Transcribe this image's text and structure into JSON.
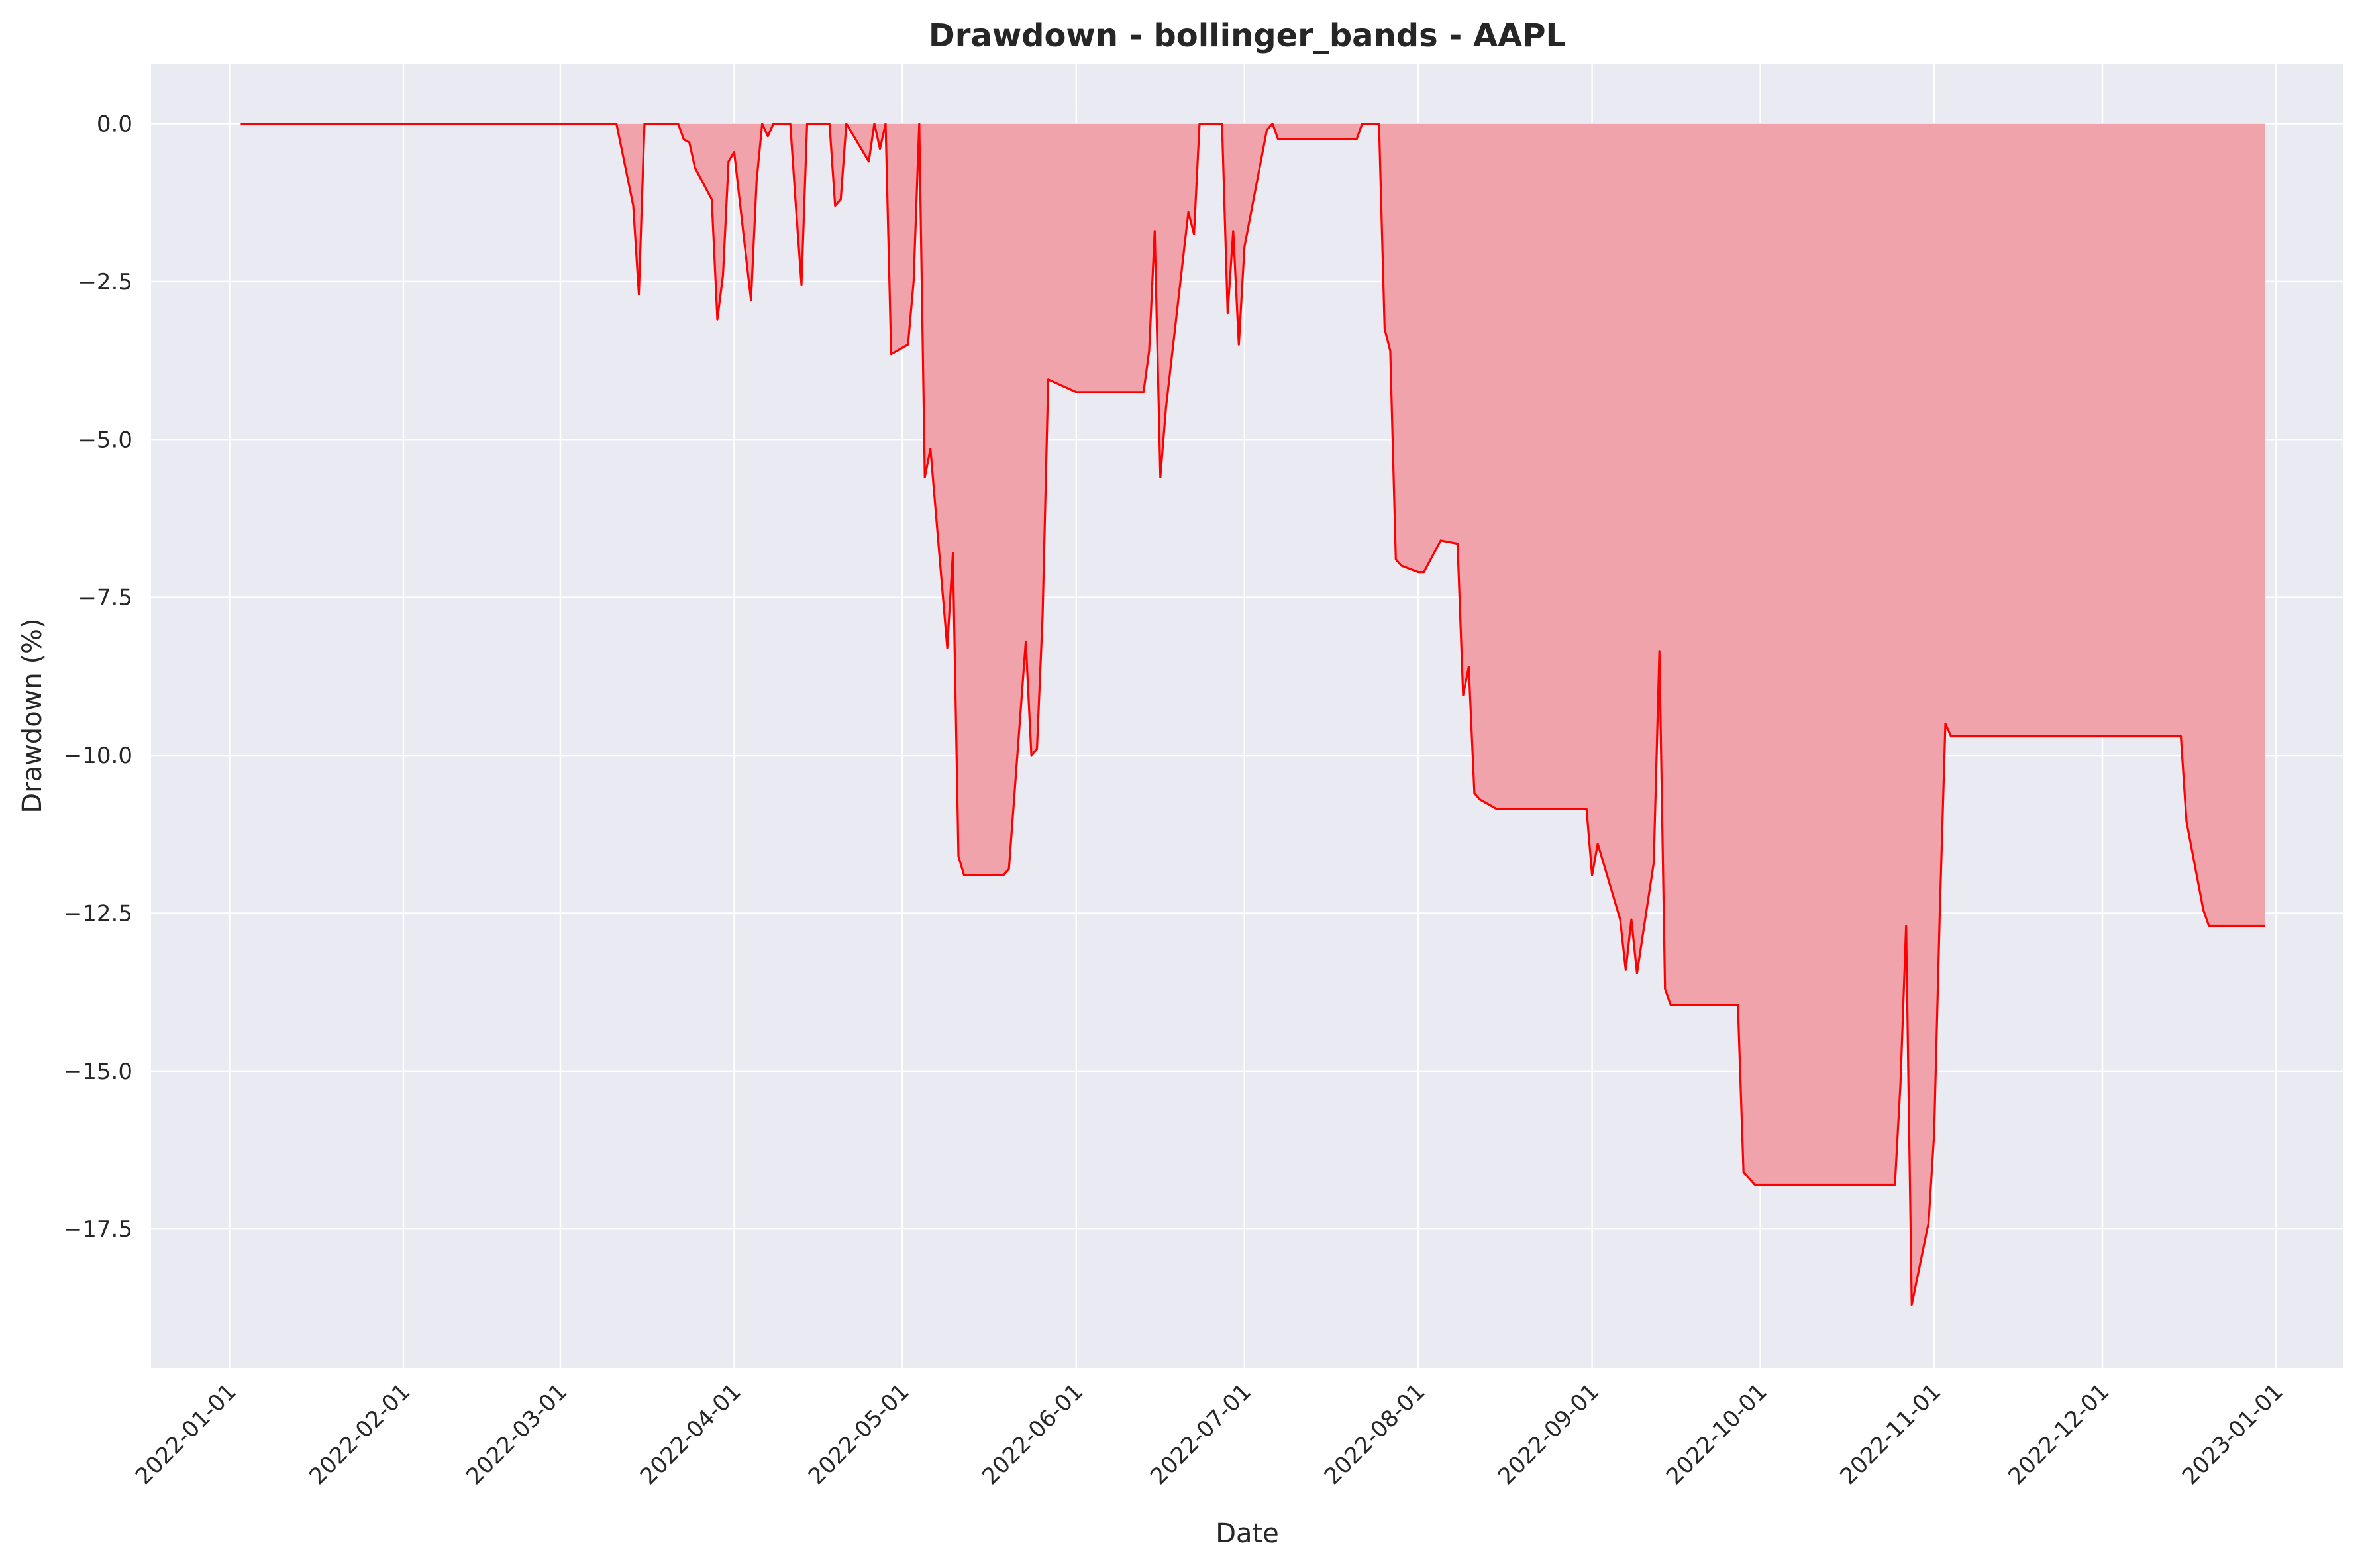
{
  "chart_data": {
    "type": "area",
    "title": "Drawdown - bollinger_bands - AAPL",
    "xlabel": "Date",
    "ylabel": "Drawdown (%)",
    "xlim": [
      "2021-12-18",
      "2023-01-13"
    ],
    "ylim": [
      -19.7,
      0.95
    ],
    "grid": true,
    "legend": "none",
    "colors": {
      "line": "#ff0000",
      "fill": "#f0a3aa",
      "plot_background": "#eaeaf2",
      "grid": "#ffffff"
    },
    "x_tick_labels": [
      "2022-01-01",
      "2022-02-01",
      "2022-03-01",
      "2022-04-01",
      "2022-05-01",
      "2022-06-01",
      "2022-07-01",
      "2022-08-01",
      "2022-09-01",
      "2022-10-01",
      "2022-11-01",
      "2022-12-01",
      "2023-01-01"
    ],
    "y_ticks": [
      0.0,
      -2.5,
      -5.0,
      -7.5,
      -10.0,
      -12.5,
      -15.0,
      -17.5
    ],
    "y_tick_labels": [
      "0.0",
      "−2.5",
      "−5.0",
      "−7.5",
      "−10.0",
      "−12.5",
      "−15.0",
      "−17.5"
    ],
    "series": [
      {
        "x": [
          "2022-01-03",
          "2022-03-11",
          "2022-03-14",
          "2022-03-15",
          "2022-03-16",
          "2022-03-22",
          "2022-03-23",
          "2022-03-24",
          "2022-03-25",
          "2022-03-28",
          "2022-03-29",
          "2022-03-30",
          "2022-03-31",
          "2022-04-01",
          "2022-04-04",
          "2022-04-05",
          "2022-04-06",
          "2022-04-07",
          "2022-04-08",
          "2022-04-11",
          "2022-04-12",
          "2022-04-13",
          "2022-04-14",
          "2022-04-15",
          "2022-04-18",
          "2022-04-19",
          "2022-04-20",
          "2022-04-21",
          "2022-04-25",
          "2022-04-26",
          "2022-04-27",
          "2022-04-28",
          "2022-04-29",
          "2022-05-02",
          "2022-05-03",
          "2022-05-04",
          "2022-05-05",
          "2022-05-06",
          "2022-05-09",
          "2022-05-10",
          "2022-05-11",
          "2022-05-12",
          "2022-05-19",
          "2022-05-20",
          "2022-05-23",
          "2022-05-24",
          "2022-05-25",
          "2022-05-26",
          "2022-05-27",
          "2022-06-01",
          "2022-06-13",
          "2022-06-14",
          "2022-06-15",
          "2022-06-16",
          "2022-06-17",
          "2022-06-21",
          "2022-06-22",
          "2022-06-23",
          "2022-06-24",
          "2022-06-27",
          "2022-06-28",
          "2022-06-29",
          "2022-06-30",
          "2022-07-01",
          "2022-07-05",
          "2022-07-06",
          "2022-07-07",
          "2022-07-21",
          "2022-07-22",
          "2022-07-25",
          "2022-07-26",
          "2022-07-27",
          "2022-07-28",
          "2022-07-29",
          "2022-08-01",
          "2022-08-02",
          "2022-08-05",
          "2022-08-08",
          "2022-08-09",
          "2022-08-10",
          "2022-08-11",
          "2022-08-12",
          "2022-08-15",
          "2022-08-31",
          "2022-09-01",
          "2022-09-02",
          "2022-09-06",
          "2022-09-07",
          "2022-09-08",
          "2022-09-09",
          "2022-09-12",
          "2022-09-13",
          "2022-09-14",
          "2022-09-15",
          "2022-09-16",
          "2022-09-27",
          "2022-09-28",
          "2022-09-29",
          "2022-09-30",
          "2022-10-25",
          "2022-10-26",
          "2022-10-27",
          "2022-10-28",
          "2022-10-31",
          "2022-11-01",
          "2022-11-02",
          "2022-11-03",
          "2022-11-04",
          "2022-12-15",
          "2022-12-16",
          "2022-12-19",
          "2022-12-20",
          "2022-12-30"
        ],
        "values": [
          0.0,
          0.0,
          -1.3,
          -2.7,
          0.0,
          0.0,
          -0.25,
          -0.3,
          -0.7,
          -1.2,
          -3.1,
          -2.4,
          -0.6,
          -0.45,
          -2.8,
          -0.9,
          0.0,
          -0.2,
          0.0,
          0.0,
          -1.3,
          -2.55,
          0.0,
          0.0,
          0.0,
          -1.3,
          -1.2,
          0.0,
          -0.6,
          0.0,
          -0.4,
          0.0,
          -3.65,
          -3.5,
          -2.5,
          0.0,
          -5.6,
          -5.15,
          -8.3,
          -6.8,
          -11.6,
          -11.9,
          -11.9,
          -11.8,
          -8.2,
          -10.0,
          -9.9,
          -7.8,
          -4.05,
          -4.25,
          -4.25,
          -3.6,
          -1.7,
          -5.6,
          -4.5,
          -1.4,
          -1.75,
          0.0,
          0.0,
          0.0,
          -3.0,
          -1.7,
          -3.5,
          -1.95,
          -0.1,
          0.0,
          -0.25,
          -0.25,
          0.0,
          0.0,
          -3.25,
          -3.6,
          -6.9,
          -7.0,
          -7.1,
          -7.1,
          -6.6,
          -6.65,
          -9.05,
          -8.6,
          -10.6,
          -10.7,
          -10.85,
          -10.85,
          -11.9,
          -11.4,
          -12.6,
          -13.4,
          -12.6,
          -13.45,
          -11.7,
          -8.35,
          -13.7,
          -13.95,
          -13.95,
          -13.95,
          -16.6,
          -16.7,
          -16.8,
          -16.8,
          -15.2,
          -12.7,
          -18.7,
          -17.4,
          -16.0,
          -12.5,
          -9.5,
          -9.7,
          -9.7,
          -11.05,
          -12.45,
          -12.7,
          -12.7
        ]
      }
    ]
  }
}
